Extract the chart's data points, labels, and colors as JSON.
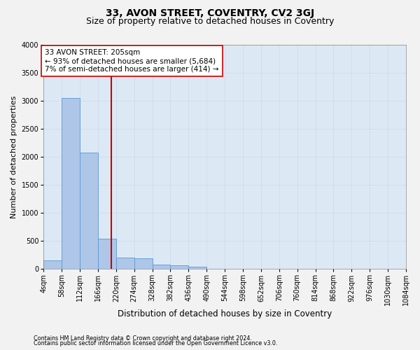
{
  "title": "33, AVON STREET, COVENTRY, CV2 3GJ",
  "subtitle": "Size of property relative to detached houses in Coventry",
  "xlabel": "Distribution of detached houses by size in Coventry",
  "ylabel": "Number of detached properties",
  "bin_edges": [
    4,
    58,
    112,
    166,
    220,
    274,
    328,
    382,
    436,
    490,
    544,
    598,
    652,
    706,
    760,
    814,
    868,
    922,
    976,
    1030,
    1084
  ],
  "bar_heights": [
    150,
    3050,
    2080,
    545,
    200,
    195,
    80,
    60,
    45,
    5,
    0,
    0,
    0,
    0,
    0,
    0,
    0,
    0,
    0,
    0
  ],
  "bar_color": "#aec6e8",
  "bar_edge_color": "#5a9ad4",
  "property_size": 205,
  "vline_color": "#cc0000",
  "annotation_text": "33 AVON STREET: 205sqm\n← 93% of detached houses are smaller (5,684)\n7% of semi-detached houses are larger (414) →",
  "annotation_box_color": "#ffffff",
  "annotation_box_edge": "#cc0000",
  "ylim": [
    0,
    4000
  ],
  "yticks": [
    0,
    500,
    1000,
    1500,
    2000,
    2500,
    3000,
    3500,
    4000
  ],
  "grid_color": "#c8d8ea",
  "bg_color": "#dce9f5",
  "fig_bg_color": "#f2f2f2",
  "footer1": "Contains HM Land Registry data © Crown copyright and database right 2024.",
  "footer2": "Contains public sector information licensed under the Open Government Licence v3.0.",
  "title_fontsize": 10,
  "subtitle_fontsize": 9,
  "tick_label_fontsize": 7,
  "ylabel_fontsize": 8,
  "xlabel_fontsize": 8.5,
  "annotation_fontsize": 7.5,
  "footer_fontsize": 5.8
}
